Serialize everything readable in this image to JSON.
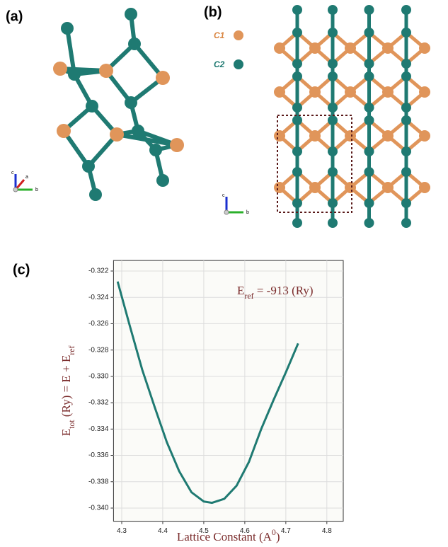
{
  "panels": {
    "a": {
      "label": "(a)",
      "axes": [
        "c",
        "a",
        "b"
      ]
    },
    "b": {
      "label": "(b)",
      "legend": [
        "C1",
        "C2"
      ],
      "axes": [
        "c",
        "b"
      ]
    },
    "c": {
      "label": "(c)"
    }
  },
  "chart_data": {
    "type": "line",
    "x": [
      4.29,
      4.32,
      4.35,
      4.38,
      4.41,
      4.44,
      4.47,
      4.5,
      4.52,
      4.55,
      4.58,
      4.61,
      4.64,
      4.67,
      4.7,
      4.73
    ],
    "values": [
      -0.3228,
      -0.3262,
      -0.3295,
      -0.3323,
      -0.335,
      -0.3372,
      -0.3388,
      -0.3395,
      -0.3396,
      -0.3393,
      -0.3383,
      -0.3365,
      -0.334,
      -0.3318,
      -0.3297,
      -0.3275
    ],
    "color": "#1f7a72",
    "xlim": [
      4.28,
      4.84
    ],
    "xticks": [
      4.3,
      4.4,
      4.5,
      4.6,
      4.7,
      4.8
    ],
    "ylim": [
      -0.341,
      -0.3212
    ],
    "yticks": [
      -0.322,
      -0.324,
      -0.326,
      -0.328,
      {
        "value": -0.33,
        "label": "-0.330"
      },
      -0.332,
      -0.334,
      -0.336,
      -0.338,
      {
        "value": -0.34,
        "label": "-0.340"
      }
    ],
    "grid": true,
    "xlabel_parts": [
      "Lattice Constant (A",
      "0",
      ")"
    ],
    "ylabel_parts": [
      "E",
      "tot",
      " (Ry)  =  E + E",
      "ref"
    ],
    "annotation_parts": [
      "E",
      "ref",
      " = -913 (Ry)"
    ]
  }
}
